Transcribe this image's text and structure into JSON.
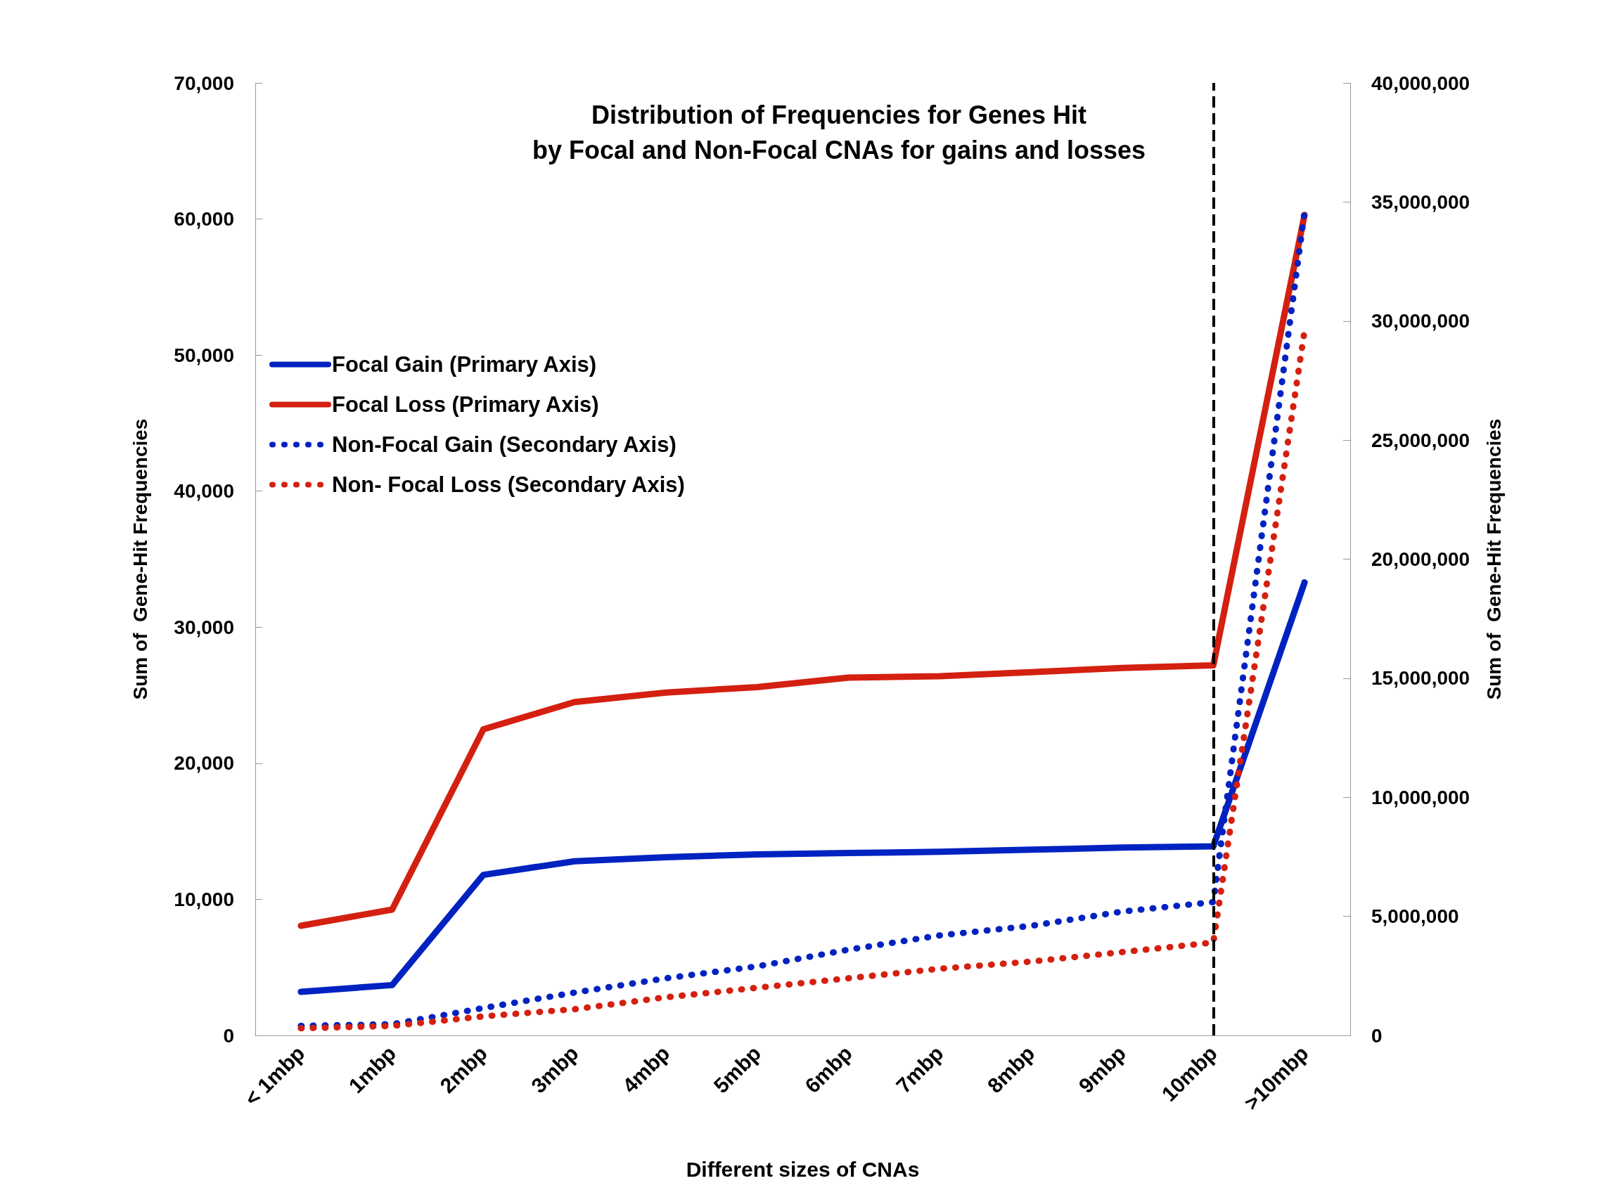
{
  "chart_data": {
    "type": "line",
    "title": "Distribution of Frequencies for Genes Hit\nby Focal and Non-Focal CNAs for gains and losses",
    "xlabel": "Different sizes of CNAs",
    "ylabel": "Sum of  Gene-Hit Frequencies",
    "y2label": "Sum of  Gene-Hit Frequencies",
    "categories": [
      "< 1mbp",
      "1mbp",
      "2mbp",
      "3mbp",
      "4mbp",
      "5mbp",
      "6mbp",
      "7mbp",
      "8mbp",
      "9mbp",
      "10mbp",
      ">10mbp"
    ],
    "series": [
      {
        "name": "Focal Gain (Primary Axis)",
        "color": "#0022c0",
        "line_style": "solid",
        "values": [
          3200,
          3700,
          11800,
          12800,
          13100,
          13300,
          13400,
          13500,
          13650,
          13800,
          13900,
          33300
        ]
      },
      {
        "name": "Focal Loss (Primary Axis)",
        "color": "#d42010",
        "line_style": "solid",
        "values": [
          8060,
          9250,
          22500,
          24500,
          25200,
          25600,
          26300,
          26400,
          26700,
          27000,
          27200,
          60300
        ]
      },
      {
        "name": "Non-Focal Gain (Secondary Axis)",
        "color": "#0022c0",
        "line_style": "dotted",
        "axis": "y2",
        "values": [
          400000,
          470000,
          1150000,
          1800000,
          2400000,
          2900000,
          3600000,
          4200000,
          4600000,
          5200000,
          5600000,
          34600000
        ]
      },
      {
        "name": "Non- Focal Loss (Secondary Axis)",
        "color": "#d42010",
        "line_style": "dotted",
        "axis": "y2",
        "values": [
          300000,
          400000,
          800000,
          1100000,
          1600000,
          2000000,
          2400000,
          2800000,
          3100000,
          3500000,
          3900000,
          29600000
        ]
      }
    ],
    "ylim": [
      0,
      70000
    ],
    "yticks": [
      0,
      {
        "value": 10000,
        "label": "10,000"
      },
      {
        "value": 20000,
        "label": "20,000"
      },
      {
        "value": 30000,
        "label": "30,000"
      },
      {
        "value": 40000,
        "label": "40,000"
      },
      {
        "value": 50000,
        "label": "50,000"
      },
      {
        "value": 60000,
        "label": "60,000"
      },
      {
        "value": 70000,
        "label": "70,000"
      }
    ],
    "y2lim": [
      0,
      40000000
    ],
    "y2ticks": [
      0,
      {
        "value": 5000000,
        "label": "5,000,000"
      },
      {
        "value": 10000000,
        "label": "10,000,000"
      },
      {
        "value": 15000000,
        "label": "15,000,000"
      },
      {
        "value": 20000000,
        "label": "20,000,000"
      },
      {
        "value": 25000000,
        "label": "25,000,000"
      },
      {
        "value": 30000000,
        "label": "30,000,000"
      },
      {
        "value": 35000000,
        "label": "35,000,000"
      },
      {
        "value": 40000000,
        "label": "40,000,000"
      }
    ],
    "ref_lines": [
      {
        "axis": "x",
        "value": "10mbp",
        "color": "#000000",
        "line_style": "dashed"
      }
    ],
    "marker": "none",
    "grid": false,
    "legend": "left"
  }
}
